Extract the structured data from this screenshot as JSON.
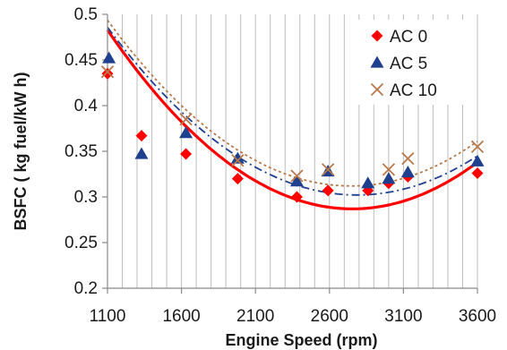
{
  "chart_data": {
    "type": "scatter",
    "title": "",
    "xlabel": "Engine Speed (rpm)",
    "ylabel": "BSFC ( kg fuel/kW h)",
    "xlim": [
      1100,
      3600
    ],
    "ylim": [
      0.2,
      0.5
    ],
    "x_ticks": [
      1100,
      1600,
      2100,
      2600,
      3100,
      3600
    ],
    "x_tick_labels": [
      "1100",
      "1600",
      "2100",
      "2600",
      "3100",
      "3600"
    ],
    "y_ticks": [
      0.2,
      0.25,
      0.3,
      0.35,
      0.4,
      0.45,
      0.5
    ],
    "y_tick_labels": [
      "0.2",
      "0.25",
      "0.3",
      "0.35",
      "0.4",
      "0.45",
      "0.5"
    ],
    "grid": "vertical",
    "legend_position": "top-right",
    "series": [
      {
        "name": "AC 0",
        "marker": "diamond",
        "color": "#ff0000",
        "x": [
          1100,
          1330,
          1630,
          1980,
          2380,
          2590,
          2860,
          3000,
          3130,
          3600
        ],
        "y": [
          0.435,
          0.367,
          0.347,
          0.32,
          0.3,
          0.307,
          0.307,
          0.315,
          0.322,
          0.326
        ],
        "trend": {
          "style": "solid",
          "color": "#ff0000",
          "coefficients": [
            0.8297,
            -0.000394,
            7.15e-08
          ]
        }
      },
      {
        "name": "AC 5",
        "marker": "triangle",
        "color": "#1f3f8f",
        "x": [
          1110,
          1330,
          1630,
          1980,
          2380,
          2590,
          2860,
          3000,
          3130,
          3600
        ],
        "y": [
          0.452,
          0.347,
          0.37,
          0.342,
          0.317,
          0.328,
          0.315,
          0.32,
          0.327,
          0.339
        ],
        "trend": {
          "style": "dashdot",
          "color": "#1f3f8f",
          "coefficients": [
            0.8037,
            -0.00036,
            6.46e-08
          ]
        }
      },
      {
        "name": "AC 10",
        "marker": "x",
        "color": "#b8794a",
        "x": [
          1100,
          1630,
          1980,
          2380,
          2590,
          3000,
          3130,
          3600
        ],
        "y": [
          0.437,
          0.385,
          0.34,
          0.323,
          0.33,
          0.33,
          0.342,
          0.355
        ],
        "trend": {
          "style": "dotted",
          "color": "#b8794a",
          "coefficients": [
            0.8173,
            -0.000368,
            6.7e-08
          ]
        }
      }
    ]
  }
}
